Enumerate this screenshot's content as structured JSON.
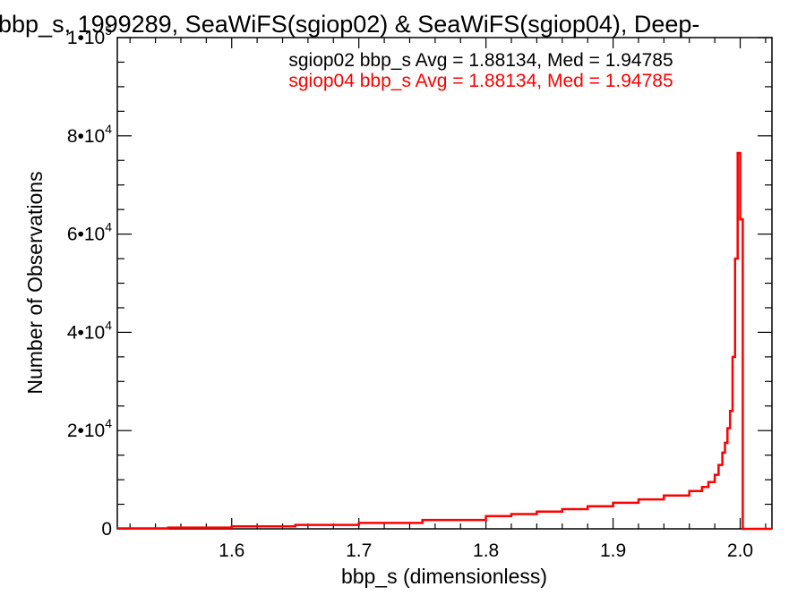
{
  "chart_data": {
    "type": "line",
    "title": "bbp_s, 1999289, SeaWiFS(sgiop02) & SeaWiFS(sgiop04), Deep-",
    "xlabel": "bbp_s (dimensionless)",
    "ylabel": "Number of Observations",
    "xlim": [
      1.51,
      2.025
    ],
    "ylim": [
      0,
      100000
    ],
    "x_ticks": [
      {
        "value": 1.6,
        "label": "1.6"
      },
      {
        "value": 1.7,
        "label": "1.7"
      },
      {
        "value": 1.8,
        "label": "1.8"
      },
      {
        "value": 1.9,
        "label": "1.9"
      },
      {
        "value": 2.0,
        "label": "2.0"
      }
    ],
    "y_ticks": [
      {
        "value": 0,
        "label": "0",
        "mantissa": "0",
        "exponent": ""
      },
      {
        "value": 20000,
        "label": "2•10^4",
        "mantissa": "2•10",
        "exponent": "4"
      },
      {
        "value": 40000,
        "label": "4•10^4",
        "mantissa": "4•10",
        "exponent": "4"
      },
      {
        "value": 60000,
        "label": "6•10^4",
        "mantissa": "6•10",
        "exponent": "4"
      },
      {
        "value": 80000,
        "label": "8•10^4",
        "mantissa": "8•10",
        "exponent": "4"
      },
      {
        "value": 100000,
        "label": "1•10^5",
        "mantissa": "1•10",
        "exponent": "5"
      }
    ],
    "annotations": [
      {
        "text": "sgiop02 bbp_s Avg = 1.88134, Med = 1.94785",
        "color": "#000000"
      },
      {
        "text": "sgiop04 bbp_s Avg = 1.88134, Med = 1.94785",
        "color": "#ff0000"
      }
    ],
    "step_plot": true,
    "series": [
      {
        "name": "sgiop04",
        "color": "#ff0000",
        "x": [
          1.51,
          1.55,
          1.6,
          1.65,
          1.7,
          1.75,
          1.8,
          1.82,
          1.84,
          1.86,
          1.88,
          1.9,
          1.92,
          1.94,
          1.96,
          1.97,
          1.975,
          1.98,
          1.983,
          1.986,
          1.988,
          1.99,
          1.992,
          1.994,
          1.996,
          1.998,
          2.0,
          2.002
        ],
        "y": [
          100,
          250,
          500,
          800,
          1200,
          1800,
          2600,
          3000,
          3500,
          4000,
          4600,
          5300,
          6000,
          6800,
          7700,
          8500,
          9500,
          11000,
          13000,
          15500,
          17500,
          20500,
          24000,
          35000,
          55000,
          76500,
          63000,
          0
        ]
      }
    ]
  }
}
